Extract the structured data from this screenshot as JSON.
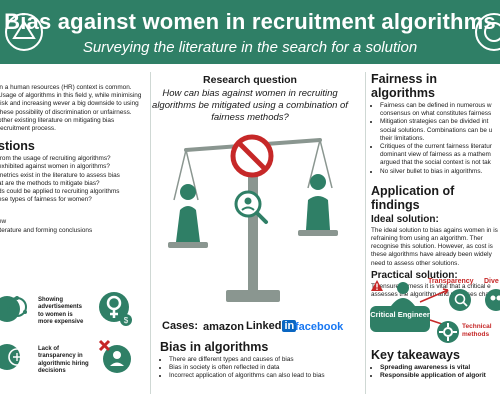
{
  "header": {
    "title": "Bias against women in recruitment algorithms",
    "subtitle": "Surveying the literature in the search for a solution"
  },
  "left": {
    "intro": "in a human resources (HR) context is common. Usage of algorithms in this field y, while minimising risk and increasing wever a big downside to using these possibility of discrimination or unfairness. other existing literature on mitigating bias recruitment process.",
    "questions_heading": "stions",
    "questions": [
      "from the usage of recruiting algorithms?",
      "exhibited against women in algorithms?",
      "metrics exist in the literature to assess bias",
      "at are the methods to mitigate bias?",
      "ds could be applied to recruiting algorithms",
      "ese types of fairness for women?"
    ],
    "method": [
      "ew",
      "iterature and forming conclusions"
    ],
    "bias_card_1": "Showing advertisements to women is more expensive",
    "bias_card_2": "Lack of transparency in algorithmic hiring decisions"
  },
  "center": {
    "rq_title": "Research question",
    "rq_text": "How can bias against women in recruiting algorithms be mitigated using a combination of fairness methods?",
    "cases_label": "Cases:",
    "cases": [
      "amazon",
      "Linked",
      "in",
      "facebook"
    ],
    "bias_heading": "Bias in algorithms",
    "bias_items": [
      "There are different types and causes of bias",
      "Bias in society is often reflected in data",
      "Incorrect application of algorithms can also lead to bias"
    ]
  },
  "right": {
    "fairness_heading": "Fairness in algorithms",
    "fairness_items": [
      "Fairness can be defined in numerous w consensus on what constitutes fairness",
      "Mitigation strategies can be divided int social solutions. Combinations can be u their limitations.",
      "Critiques of the current fairness literatur dominant view of fairness as a mathem argued that the social context is not tak",
      "No silver bullet to bias in algorithms."
    ],
    "application_heading": "Application of findings",
    "ideal_heading": "Ideal solution:",
    "ideal_text": "The ideal solution to bias agains women in is refraining from using an algorithm. Ther recognise this solution. However, as cost is these algorithms have already been widely need to assess other solutions.",
    "practical_heading": "Practical solution:",
    "practical_text": "To ensure fairness it is vital that a critical e assesses the algorithm and proposes chan",
    "diagram": {
      "transparency": "Transparency",
      "diversity": "Dive",
      "critical_engineer": "Critical Engineer",
      "technical_methods": "Technical methods"
    },
    "takeaways_heading": "Key takeaways",
    "takeaways": [
      "Spreading awareness is vital",
      "Responsible application of algorit"
    ]
  },
  "colors": {
    "accent": "#2f7f66",
    "danger": "#c62828"
  }
}
